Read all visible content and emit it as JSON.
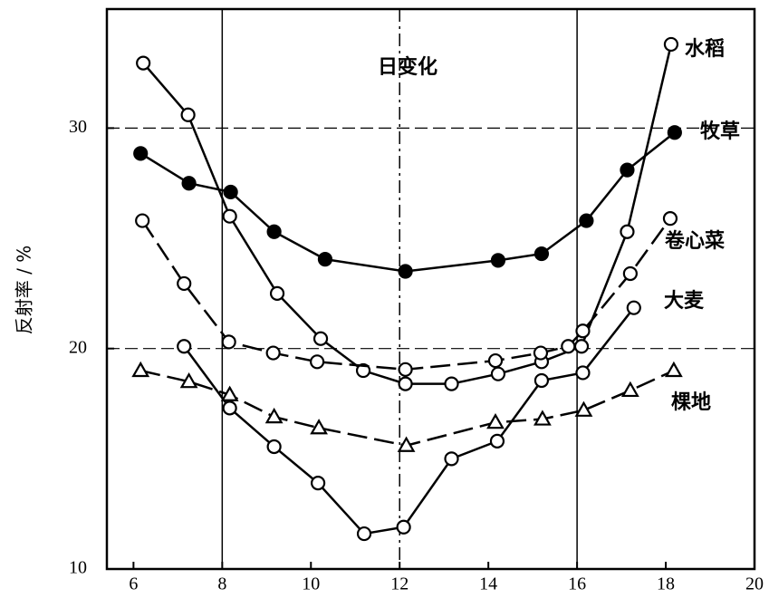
{
  "chart_data": {
    "type": "line",
    "annotation": "日变化",
    "y_label": "反射率 / %",
    "xlim": [
      5.4,
      20
    ],
    "ylim": [
      10,
      35.4
    ],
    "xticks": [
      6,
      8,
      10,
      12,
      14,
      16,
      18,
      20
    ],
    "yticks": [
      10,
      20,
      30
    ],
    "xgrid": [
      8,
      12,
      16
    ],
    "ygrid": [
      20,
      30
    ],
    "series": [
      {
        "name": "水稻",
        "color": "#000000",
        "marker": "open-circle",
        "dash": false,
        "x": [
          6.22,
          7.23,
          8.17,
          9.24,
          10.22,
          11.18,
          12.13,
          13.17,
          14.22,
          15.2,
          16.1,
          17.13,
          18.12
        ],
        "values": [
          32.95,
          30.6,
          26.0,
          22.5,
          20.45,
          19.0,
          18.4,
          18.4,
          18.85,
          19.4,
          20.1,
          25.3,
          33.8
        ]
      },
      {
        "name": "牧草",
        "color": "#000000",
        "marker": "filled-circle",
        "dash": false,
        "x": [
          6.16,
          7.25,
          8.19,
          9.17,
          10.32,
          12.13,
          14.22,
          15.2,
          16.21,
          17.13,
          18.2
        ],
        "values": [
          28.85,
          27.5,
          27.1,
          25.3,
          24.05,
          23.5,
          24.0,
          24.3,
          25.8,
          28.1,
          29.8
        ]
      },
      {
        "name": "卷心菜",
        "color": "#000000",
        "marker": "open-circle",
        "dash": true,
        "x": [
          6.2,
          7.14,
          8.15,
          9.15,
          10.14,
          12.13,
          14.16,
          15.18,
          15.8,
          16.13,
          17.2,
          18.1
        ],
        "values": [
          25.8,
          22.95,
          20.3,
          19.8,
          19.4,
          19.05,
          19.45,
          19.8,
          20.1,
          20.8,
          23.4,
          25.9
        ]
      },
      {
        "name": "大麦",
        "color": "#000000",
        "marker": "open-circle",
        "dash": false,
        "x": [
          7.14,
          8.17,
          9.17,
          10.16,
          11.2,
          12.09,
          13.17,
          14.2,
          15.2,
          16.13,
          17.28
        ],
        "values": [
          20.1,
          17.3,
          15.55,
          13.9,
          11.6,
          11.9,
          15.0,
          15.8,
          18.55,
          18.9,
          21.85
        ]
      },
      {
        "name": "棵地",
        "color": "#000000",
        "marker": "triangle",
        "dash": true,
        "x": [
          6.16,
          7.25,
          8.17,
          9.17,
          10.18,
          12.15,
          14.16,
          15.22,
          16.15,
          17.2,
          18.18
        ],
        "values": [
          19.0,
          18.5,
          17.9,
          16.9,
          16.4,
          15.6,
          16.65,
          16.8,
          17.2,
          18.1,
          19.0
        ]
      }
    ]
  }
}
